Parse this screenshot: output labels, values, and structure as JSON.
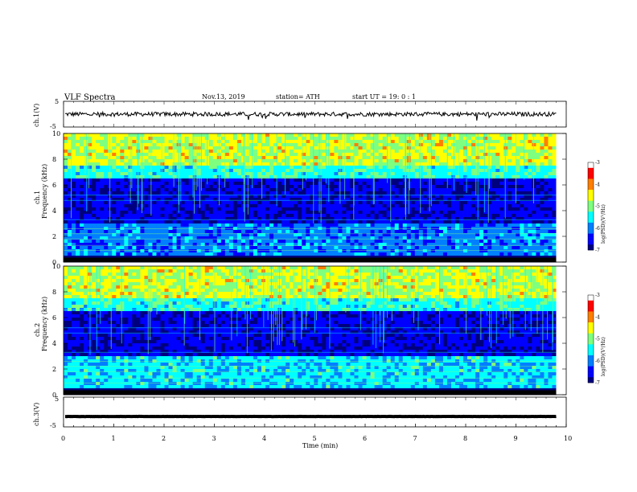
{
  "header": {
    "title": "VLF  Spectra",
    "date": "Nov.13, 2019",
    "station": "station= ATH",
    "start": "start  UT  =    19: 0   : 1"
  },
  "chart_data": [
    {
      "type": "line",
      "panel": "ch1-waveform",
      "ylabel": "ch.1(V)",
      "ylim": [
        -5,
        5
      ],
      "y_ticks": [
        "5",
        "-5"
      ],
      "baseline": 0,
      "amplitude_typical": 0.8,
      "color": "#000000"
    },
    {
      "type": "heatmap",
      "panel": "ch1-spectrogram",
      "ylabel": "Frequency (kHz)",
      "channel_label": "ch.1",
      "ylim": [
        0,
        10
      ],
      "y_ticks": [
        "0",
        "2",
        "4",
        "6",
        "8",
        "10"
      ],
      "colorbar": {
        "label": "log(PSD)(V²/Hz)",
        "range": [
          -7,
          -3
        ],
        "ticks": [
          "-3",
          "-4",
          "-5",
          "-6",
          "-7"
        ]
      }
    },
    {
      "type": "heatmap",
      "panel": "ch2-spectrogram",
      "ylabel": "Frequency (kHz)",
      "channel_label": "ch.2",
      "ylim": [
        0,
        10
      ],
      "y_ticks": [
        "0",
        "2",
        "4",
        "6",
        "8",
        "10"
      ],
      "colorbar": {
        "label": "log(PSD)(V²/Hz)",
        "range": [
          -7,
          -3
        ],
        "ticks": [
          "-3",
          "-4",
          "-5",
          "-6",
          "-7"
        ]
      }
    },
    {
      "type": "line",
      "panel": "ch3-waveform",
      "ylabel": "ch.3(V)",
      "ylim": [
        -5,
        5
      ],
      "y_ticks": [
        "5",
        "-5"
      ],
      "baseline": -1.5,
      "amplitude_typical": 0.1,
      "color": "#000000"
    }
  ],
  "x_axis": {
    "label": "Time  (min)",
    "xlim": [
      0,
      10
    ],
    "ticks": [
      "0",
      "1",
      "2",
      "3",
      "4",
      "5",
      "6",
      "7",
      "8",
      "9",
      "10"
    ],
    "data_end": 9.8
  },
  "colormap": [
    "#00007f",
    "#0000ff",
    "#007fff",
    "#00ffff",
    "#7fff7f",
    "#ffff00",
    "#ff7f00",
    "#ff0000",
    "#ffffff"
  ]
}
